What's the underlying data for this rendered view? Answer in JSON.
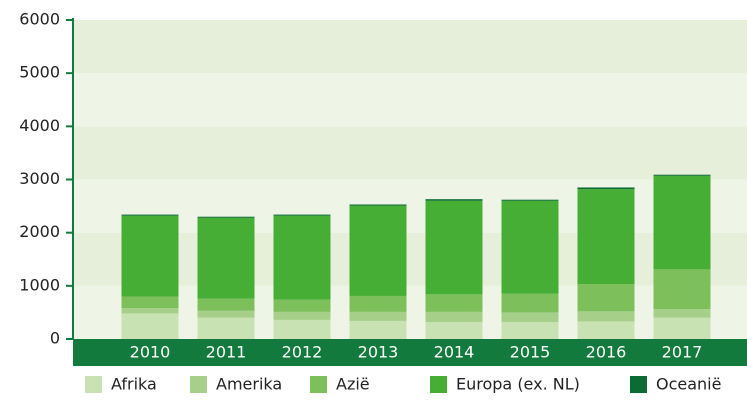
{
  "chart_data": {
    "type": "stacked_bar",
    "categories": [
      "2010",
      "2011",
      "2012",
      "2013",
      "2014",
      "2015",
      "2016",
      "2017"
    ],
    "series": [
      {
        "name": "Afrika",
        "color": "#c9e2b3",
        "values": [
          480,
          400,
          360,
          340,
          320,
          320,
          330,
          400
        ]
      },
      {
        "name": "Amerika",
        "color": "#a6d08a",
        "values": [
          100,
          130,
          150,
          170,
          190,
          180,
          190,
          160
        ]
      },
      {
        "name": "Azië",
        "color": "#7dbf5a",
        "values": [
          220,
          230,
          230,
          300,
          330,
          350,
          510,
          750
        ]
      },
      {
        "name": "Europa (ex. NL)",
        "color": "#46ad35",
        "values": [
          1520,
          1520,
          1580,
          1700,
          1760,
          1750,
          1790,
          1760
        ]
      },
      {
        "name": "Oceanië",
        "color": "#0b6b35",
        "values": [
          20,
          20,
          20,
          20,
          30,
          20,
          30,
          20
        ]
      }
    ],
    "ylim": [
      0,
      6000
    ],
    "yticks": [
      0,
      1000,
      2000,
      3000,
      4000,
      5000,
      6000
    ],
    "grid": true
  }
}
